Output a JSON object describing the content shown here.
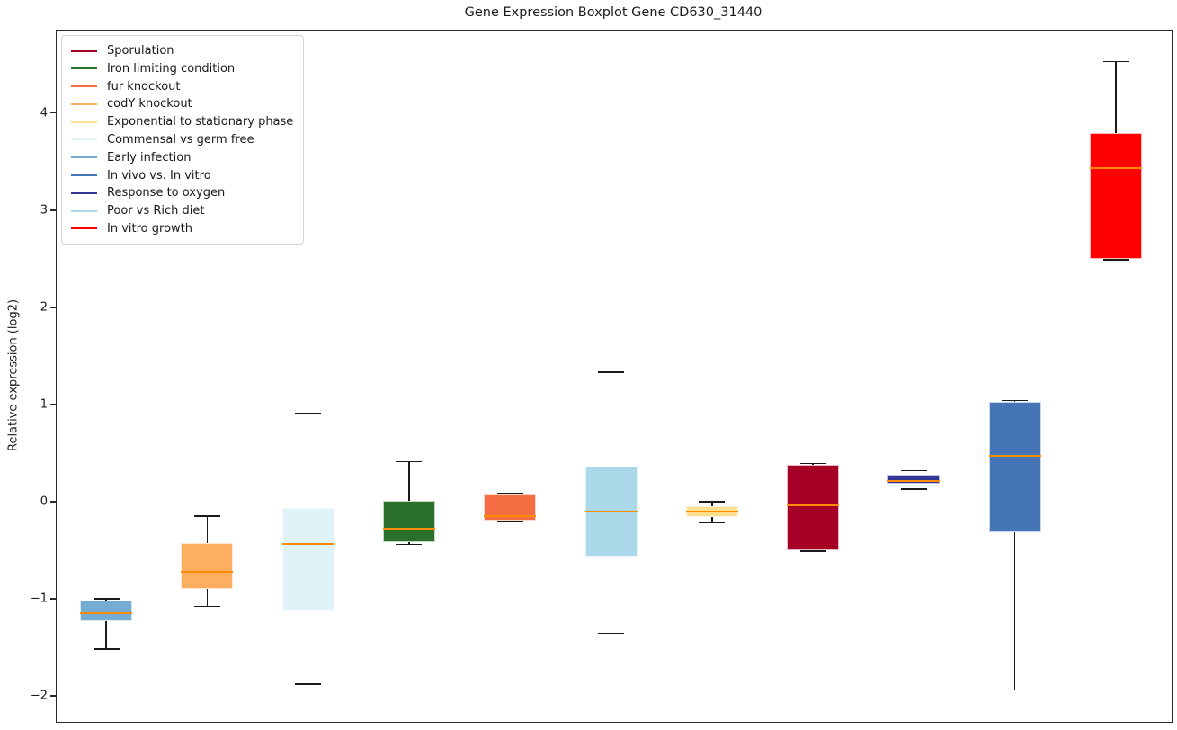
{
  "title": "Gene Expression Boxplot Gene CD630_31440",
  "ylabel": "Relative expression (log2)",
  "legend": {
    "items": [
      {
        "label": "Sporulation",
        "color": "#a50026"
      },
      {
        "label": "Iron limiting condition",
        "color": "#2a6f2a"
      },
      {
        "label": "fur knockout",
        "color": "#f46d43"
      },
      {
        "label": "codY knockout",
        "color": "#fdae61"
      },
      {
        "label": "Exponential to stationary phase",
        "color": "#fee090"
      },
      {
        "label": "Commensal vs germ free",
        "color": "#e0f3f8"
      },
      {
        "label": "Early infection",
        "color": "#74add1"
      },
      {
        "label": "In vivo vs. In vitro",
        "color": "#4575b4"
      },
      {
        "label": "Response to oxygen",
        "color": "#313695"
      },
      {
        "label": "Poor vs Rich diet",
        "color": "#abd9e9"
      },
      {
        "label": "In vitro growth",
        "color": "#ff0000"
      }
    ]
  },
  "chart_data": {
    "type": "boxplot",
    "title": "Gene Expression Boxplot Gene CD630_31440",
    "ylabel": "Relative expression (log2)",
    "xlabel": "",
    "ylim": [
      -2.27,
      4.85
    ],
    "yticks": [
      -2,
      -1,
      0,
      1,
      2,
      3,
      4
    ],
    "grid": false,
    "legend_position": "upper-left",
    "median_color": "#ff8c00",
    "whisker_color": "#1a1a1a",
    "series": [
      {
        "name": "Early infection",
        "color": "#74add1",
        "whisker_low": -1.52,
        "q1": -1.23,
        "median": -1.15,
        "q3": -1.02,
        "whisker_high": -1.0
      },
      {
        "name": "codY knockout",
        "color": "#fdae61",
        "whisker_low": -1.08,
        "q1": -0.9,
        "median": -0.72,
        "q3": -0.43,
        "whisker_high": -0.15
      },
      {
        "name": "Commensal vs germ free",
        "color": "#e0f3f8",
        "whisker_low": -1.88,
        "q1": -1.13,
        "median": -0.44,
        "q3": -0.07,
        "whisker_high": 0.91
      },
      {
        "name": "Iron limiting condition",
        "color": "#2a6f2a",
        "whisker_low": -0.44,
        "q1": -0.42,
        "median": -0.28,
        "q3": 0.01,
        "whisker_high": 0.41
      },
      {
        "name": "fur knockout",
        "color": "#f46d43",
        "whisker_low": -0.21,
        "q1": -0.2,
        "median": -0.15,
        "q3": 0.07,
        "whisker_high": 0.08
      },
      {
        "name": "Poor vs Rich diet",
        "color": "#abd9e9",
        "whisker_low": -1.36,
        "q1": -0.58,
        "median": -0.1,
        "q3": 0.36,
        "whisker_high": 1.33
      },
      {
        "name": "Exponential to stationary phase",
        "color": "#fee090",
        "whisker_low": -0.22,
        "q1": -0.16,
        "median": -0.1,
        "q3": -0.05,
        "whisker_high": 0.0
      },
      {
        "name": "Sporulation",
        "color": "#a50026",
        "whisker_low": -0.51,
        "q1": -0.5,
        "median": -0.04,
        "q3": 0.38,
        "whisker_high": 0.39
      },
      {
        "name": "Response to oxygen",
        "color": "#313695",
        "whisker_low": 0.13,
        "q1": 0.18,
        "median": 0.21,
        "q3": 0.28,
        "whisker_high": 0.32
      },
      {
        "name": "In vivo vs. In vitro",
        "color": "#4575b4",
        "whisker_low": -1.94,
        "q1": -0.32,
        "median": 0.47,
        "q3": 1.03,
        "whisker_high": 1.04
      },
      {
        "name": "In vitro growth",
        "color": "#ff0000",
        "whisker_low": 2.49,
        "q1": 2.5,
        "median": 3.43,
        "q3": 3.79,
        "whisker_high": 4.53
      }
    ]
  }
}
